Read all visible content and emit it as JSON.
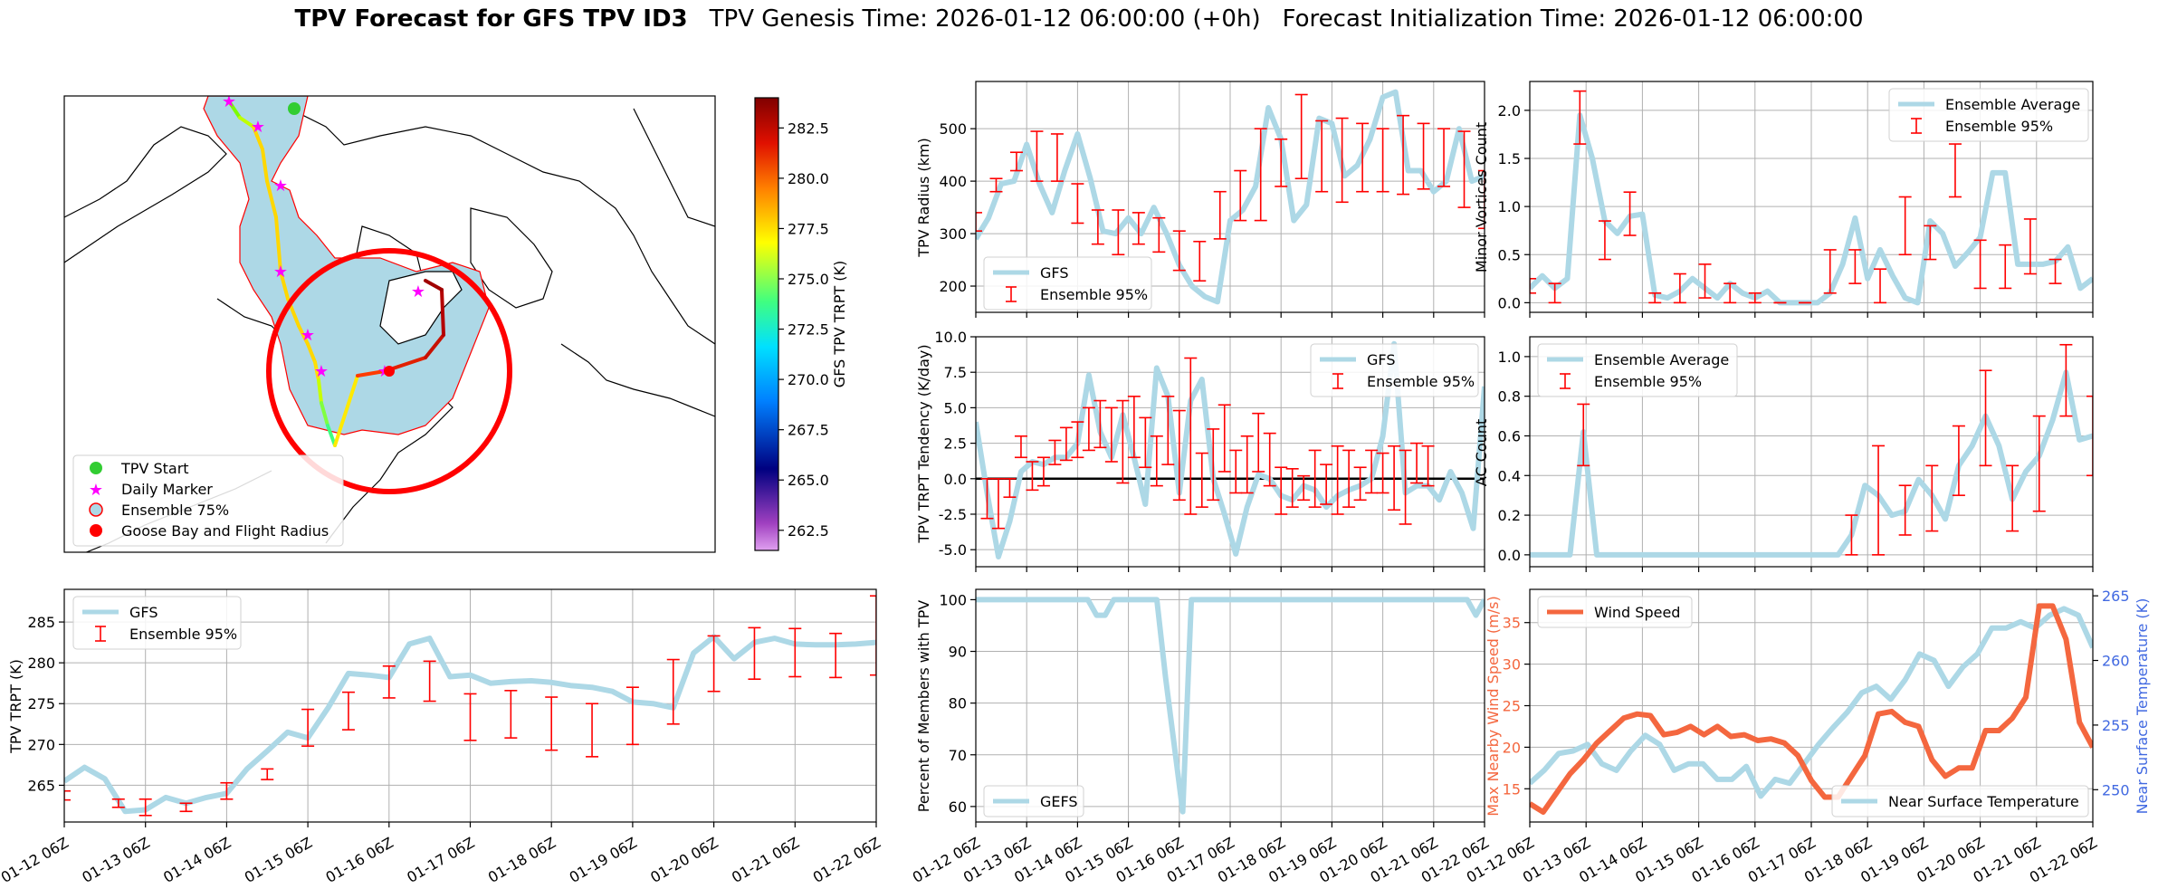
{
  "figure": {
    "title_bold": "TPV Forecast for GFS TPV ID3",
    "title_genesis": "TPV Genesis Time: 2026-01-12 06:00:00 (+0h)",
    "title_init": "Forecast Initialization Time: 2026-01-12 06:00:00"
  },
  "colors": {
    "light_blue": "#add8e6",
    "error_red": "#ff0000",
    "wind_orange": "#f4673f",
    "temp_blue": "#4169e1",
    "grid": "#b0b0b0"
  },
  "chart_data": [
    {
      "id": "map",
      "type": "map",
      "colorbar": {
        "label": "GFS TPV TRPT (K)",
        "ticks": [
          "262.5",
          "265.0",
          "267.5",
          "270.0",
          "272.5",
          "275.0",
          "277.5",
          "280.0",
          "282.5"
        ],
        "range": [
          261.5,
          284.0
        ]
      },
      "legend": {
        "placement": "lower-left",
        "entries": [
          "TPV Start",
          "Daily Marker",
          "Ensemble 75%",
          "Goose Bay and Flight Radius"
        ]
      }
    },
    {
      "id": "trpt",
      "type": "line",
      "ylabel": "TPV TRPT (K)",
      "ylim": [
        260.5,
        289
      ],
      "yticks": [
        265,
        270,
        275,
        280,
        285
      ],
      "legend": [
        "GFS",
        "Ensemble 95%"
      ],
      "gfs": [
        265.5,
        267.2,
        265.8,
        261.8,
        262.0,
        263.5,
        262.8,
        263.5,
        264.0,
        267.0,
        269.2,
        271.5,
        270.8,
        274.5,
        278.7,
        278.5,
        278.2,
        282.3,
        283.0,
        278.3,
        278.5,
        277.5,
        277.7,
        277.8,
        277.6,
        277.2,
        277.0,
        276.5,
        275.2,
        275.0,
        274.5,
        281.2,
        283.2,
        280.5,
        282.5,
        283.0,
        282.3,
        282.2,
        282.2,
        282.3,
        282.5
      ],
      "errorbars": [
        [
          0,
          263.2,
          264.3
        ],
        [
          4,
          262.3,
          263.3
        ],
        [
          6,
          261.3,
          263.3
        ],
        [
          9,
          261.8,
          262.8
        ],
        [
          12,
          263.3,
          265.3
        ],
        [
          15,
          265.7,
          267.0
        ],
        [
          18,
          269.8,
          274.3
        ],
        [
          21,
          271.8,
          276.4
        ],
        [
          24,
          275.7,
          279.6
        ],
        [
          27,
          275.3,
          280.2
        ],
        [
          30,
          270.5,
          276.2
        ],
        [
          33,
          270.8,
          276.6
        ],
        [
          36,
          269.3,
          275.8
        ],
        [
          39,
          268.5,
          275.0
        ],
        [
          42,
          270.0,
          277.0
        ],
        [
          45,
          272.5,
          280.4
        ],
        [
          48,
          276.5,
          283.3
        ],
        [
          51,
          278.0,
          284.3
        ],
        [
          54,
          278.3,
          284.2
        ],
        [
          57,
          278.2,
          283.6
        ],
        [
          60,
          278.5,
          288.2
        ]
      ]
    },
    {
      "id": "radius",
      "type": "line",
      "ylabel": "TPV Radius (km)",
      "ylim": [
        150,
        590
      ],
      "yticks": [
        200,
        300,
        400,
        500
      ],
      "legend": [
        "GFS",
        "Ensemble 95%"
      ],
      "gfs": [
        290,
        330,
        395,
        400,
        470,
        395,
        340,
        420,
        490,
        405,
        305,
        300,
        330,
        300,
        350,
        300,
        240,
        200,
        180,
        170,
        325,
        345,
        390,
        540,
        480,
        325,
        355,
        520,
        510,
        410,
        430,
        480,
        560,
        570,
        420,
        420,
        380,
        400,
        500,
        400,
        410
      ],
      "errorbars": [
        [
          0,
          305,
          340
        ],
        [
          2,
          380,
          405
        ],
        [
          4,
          420,
          455
        ],
        [
          6,
          400,
          495
        ],
        [
          8,
          400,
          490
        ],
        [
          10,
          320,
          395
        ],
        [
          12,
          280,
          345
        ],
        [
          14,
          260,
          345
        ],
        [
          16,
          280,
          340
        ],
        [
          18,
          265,
          330
        ],
        [
          20,
          230,
          305
        ],
        [
          22,
          210,
          285
        ],
        [
          24,
          290,
          380
        ],
        [
          26,
          325,
          420
        ],
        [
          28,
          325,
          500
        ],
        [
          30,
          390,
          480
        ],
        [
          32,
          405,
          565
        ],
        [
          34,
          380,
          515
        ],
        [
          36,
          360,
          520
        ],
        [
          38,
          380,
          510
        ],
        [
          40,
          380,
          500
        ],
        [
          42,
          375,
          525
        ],
        [
          44,
          385,
          510
        ],
        [
          46,
          390,
          500
        ],
        [
          48,
          350,
          495
        ],
        [
          50,
          310,
          420
        ]
      ]
    },
    {
      "id": "tendency",
      "type": "line",
      "ylabel": "TPV TRPT Tendency (K/day)",
      "ylim": [
        -6.2,
        10
      ],
      "yticks": [
        -5.0,
        -2.5,
        0.0,
        2.5,
        5.0,
        7.5,
        10.0
      ],
      "legend": [
        "GFS",
        "Ensemble 95%"
      ],
      "gfs": [
        4.0,
        -1.0,
        -5.5,
        -3.0,
        0.5,
        1.2,
        1.0,
        1.5,
        1.5,
        2.5,
        7.3,
        3.3,
        1.5,
        4.5,
        1.5,
        -1.8,
        7.8,
        5.8,
        -1.0,
        5.5,
        7.0,
        0.0,
        -2.5,
        -5.3,
        -2.0,
        0.3,
        0.0,
        -1.2,
        -1.5,
        -0.5,
        -0.8,
        -2.0,
        -1.2,
        -0.8,
        -0.5,
        0.0,
        3.0,
        9.5,
        -1.0,
        -0.5,
        -0.5,
        -1.5,
        0.5,
        -1.0,
        -3.5,
        6.5
      ],
      "errorbars": [
        [
          1,
          -2.8,
          0.0
        ],
        [
          2,
          -3.5,
          0.0
        ],
        [
          3,
          -1.3,
          0.0
        ],
        [
          4,
          1.5,
          3.0
        ],
        [
          5,
          -0.8,
          1.2
        ],
        [
          6,
          -0.5,
          1.5
        ],
        [
          7,
          1.0,
          2.7
        ],
        [
          8,
          1.3,
          3.6
        ],
        [
          9,
          1.5,
          4.0
        ],
        [
          10,
          2.0,
          5.0
        ],
        [
          11,
          2.2,
          5.5
        ],
        [
          12,
          1.2,
          5.0
        ],
        [
          13,
          -0.3,
          5.5
        ],
        [
          14,
          1.5,
          5.8
        ],
        [
          15,
          0.8,
          4.3
        ],
        [
          16,
          -0.5,
          3.0
        ],
        [
          17,
          1.0,
          5.8
        ],
        [
          18,
          -1.5,
          4.8
        ],
        [
          19,
          -2.5,
          8.5
        ],
        [
          20,
          -2.0,
          1.8
        ],
        [
          21,
          -1.5,
          3.5
        ],
        [
          22,
          0.5,
          5.2
        ],
        [
          23,
          -1.0,
          2.0
        ],
        [
          24,
          -1.0,
          3.0
        ],
        [
          25,
          0.5,
          4.6
        ],
        [
          26,
          -0.5,
          3.2
        ],
        [
          27,
          -2.5,
          0.8
        ],
        [
          28,
          -2.0,
          0.7
        ],
        [
          29,
          -1.5,
          0.2
        ],
        [
          30,
          -2.0,
          2.0
        ],
        [
          31,
          -1.8,
          1.0
        ],
        [
          32,
          -2.5,
          2.3
        ],
        [
          33,
          -2.0,
          2.0
        ],
        [
          34,
          -1.5,
          0.8
        ],
        [
          35,
          -1.0,
          2.0
        ],
        [
          36,
          -1.0,
          1.8
        ],
        [
          37,
          -2.2,
          2.3
        ],
        [
          38,
          -3.2,
          2.0
        ],
        [
          39,
          -0.3,
          2.5
        ],
        [
          40,
          -0.5,
          2.3
        ]
      ]
    },
    {
      "id": "percent",
      "type": "line",
      "ylabel": "Percent of Members with TPV",
      "ylim": [
        57,
        102
      ],
      "yticks": [
        60,
        70,
        80,
        90,
        100
      ],
      "legend": [
        "GEFS"
      ],
      "gefs": [
        100,
        100,
        100,
        100,
        100,
        100,
        100,
        100,
        100,
        100,
        100,
        100,
        100,
        100,
        97,
        97,
        100,
        100,
        100,
        100,
        100,
        100,
        85,
        72,
        59,
        100,
        100,
        100,
        100,
        100,
        100,
        100,
        100,
        100,
        100,
        100,
        100,
        100,
        100,
        100,
        100,
        100,
        100,
        100,
        100,
        100,
        100,
        100,
        100,
        100,
        100,
        100,
        100,
        100,
        100,
        100,
        100,
        100,
        97,
        100
      ]
    },
    {
      "id": "minor",
      "type": "line",
      "ylabel": "Minor Vortices Count",
      "ylim": [
        -0.1,
        2.3
      ],
      "yticks": [
        0.0,
        0.5,
        1.0,
        1.5,
        2.0
      ],
      "legend": [
        "Ensemble Average",
        "Ensemble 95%"
      ],
      "avg": [
        0.15,
        0.28,
        0.15,
        0.25,
        1.95,
        1.5,
        0.85,
        0.72,
        0.9,
        0.92,
        0.08,
        0.05,
        0.12,
        0.25,
        0.15,
        0.05,
        0.2,
        0.1,
        0.05,
        0.12,
        0.0,
        0.0,
        0.0,
        0.0,
        0.1,
        0.4,
        0.88,
        0.25,
        0.55,
        0.28,
        0.05,
        0.0,
        0.85,
        0.72,
        0.38,
        0.52,
        0.68,
        1.35,
        1.35,
        0.4,
        0.4,
        0.4,
        0.43,
        0.58,
        0.15,
        0.25
      ],
      "errorbars": [
        [
          0,
          0.1,
          0.25
        ],
        [
          2,
          0.0,
          0.2
        ],
        [
          4,
          1.65,
          2.2
        ],
        [
          6,
          0.45,
          0.85
        ],
        [
          8,
          0.7,
          1.15
        ],
        [
          10,
          0.0,
          0.1
        ],
        [
          12,
          0.0,
          0.3
        ],
        [
          14,
          0.05,
          0.4
        ],
        [
          16,
          0.0,
          0.2
        ],
        [
          18,
          0.0,
          0.1
        ],
        [
          20,
          0.0,
          0.0
        ],
        [
          22,
          0.0,
          0.0
        ],
        [
          24,
          0.1,
          0.55
        ],
        [
          26,
          0.2,
          0.55
        ],
        [
          28,
          0.0,
          0.35
        ],
        [
          30,
          0.5,
          1.1
        ],
        [
          32,
          0.45,
          0.8
        ],
        [
          34,
          1.1,
          1.65
        ],
        [
          36,
          0.15,
          0.65
        ],
        [
          38,
          0.15,
          0.6
        ],
        [
          40,
          0.3,
          0.87
        ],
        [
          42,
          0.2,
          0.45
        ]
      ]
    },
    {
      "id": "ac",
      "type": "line",
      "ylabel": "AC Count",
      "ylim": [
        -0.06,
        1.1
      ],
      "yticks": [
        0.0,
        0.2,
        0.4,
        0.6,
        0.8,
        1.0
      ],
      "legend": [
        "Ensemble Average",
        "Ensemble 95%"
      ],
      "avg": [
        0.0,
        0.0,
        0.0,
        0.0,
        0.62,
        0.0,
        0.0,
        0.0,
        0.0,
        0.0,
        0.0,
        0.0,
        0.0,
        0.0,
        0.0,
        0.0,
        0.0,
        0.0,
        0.0,
        0.0,
        0.0,
        0.0,
        0.0,
        0.0,
        0.1,
        0.35,
        0.3,
        0.2,
        0.22,
        0.38,
        0.3,
        0.18,
        0.45,
        0.55,
        0.7,
        0.55,
        0.28,
        0.42,
        0.5,
        0.68,
        0.92,
        0.58,
        0.6
      ],
      "errorbars": [
        [
          4,
          0.45,
          0.76
        ],
        [
          24,
          0.0,
          0.2
        ],
        [
          26,
          0.0,
          0.55
        ],
        [
          28,
          0.1,
          0.35
        ],
        [
          30,
          0.12,
          0.45
        ],
        [
          32,
          0.3,
          0.65
        ],
        [
          34,
          0.45,
          0.93
        ],
        [
          36,
          0.12,
          0.45
        ],
        [
          38,
          0.22,
          0.7
        ],
        [
          40,
          0.7,
          1.06
        ],
        [
          42,
          0.4,
          0.8
        ]
      ]
    },
    {
      "id": "wind_temp",
      "type": "line",
      "ylabel_left": "Max Nearby Wind Speed (m/s)",
      "ylabel_right": "Near Surface Temperature (K)",
      "ylim_left": [
        11,
        39
      ],
      "ylim_right": [
        247.5,
        265.5
      ],
      "yticks_left": [
        15,
        20,
        25,
        30,
        35
      ],
      "yticks_right": [
        250,
        255,
        260,
        265
      ],
      "legend_left": [
        "Wind Speed"
      ],
      "legend_right": [
        "Near Surface Temperature"
      ],
      "wind": [
        13.2,
        12.2,
        14.5,
        16.8,
        18.5,
        20.5,
        22.0,
        23.5,
        24.0,
        23.8,
        21.5,
        21.8,
        22.5,
        21.5,
        22.5,
        21.3,
        21.5,
        20.8,
        21.0,
        20.5,
        19.0,
        16.0,
        14.0,
        14.0,
        16.5,
        19.0,
        24.0,
        24.3,
        23.0,
        22.5,
        18.5,
        16.5,
        17.5,
        17.5,
        22.0,
        22.0,
        23.5,
        26.0,
        37.0,
        37.0,
        33.0,
        23.0,
        20.0
      ],
      "temp": [
        250.5,
        251.5,
        252.8,
        253.0,
        253.5,
        252.0,
        251.5,
        253.0,
        254.2,
        253.5,
        251.5,
        252.0,
        252.0,
        250.8,
        250.8,
        251.8,
        249.5,
        250.8,
        250.5,
        252.0,
        253.5,
        254.8,
        256.0,
        257.5,
        258.0,
        257.0,
        258.5,
        260.5,
        260.0,
        258.0,
        259.5,
        260.5,
        262.5,
        262.5,
        263.0,
        262.5,
        263.5,
        264.0,
        263.5,
        261.0
      ]
    }
  ],
  "x_axis": {
    "labels": [
      "01-12 06Z",
      "01-13 06Z",
      "01-14 06Z",
      "01-15 06Z",
      "01-16 06Z",
      "01-17 06Z",
      "01-18 06Z",
      "01-19 06Z",
      "01-20 06Z",
      "01-21 06Z",
      "01-22 06Z"
    ]
  }
}
